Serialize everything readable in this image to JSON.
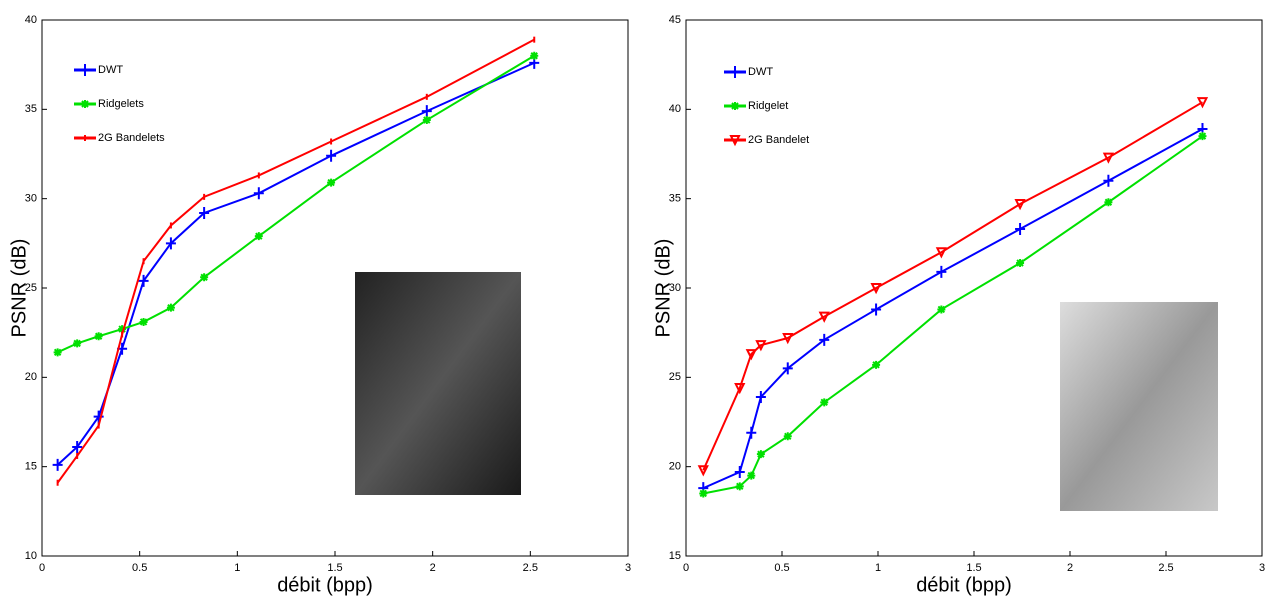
{
  "chart_data": [
    {
      "type": "line",
      "x_label": "débit (bpp)",
      "y_label": "PSNR (dB)",
      "xlim": [
        0,
        3
      ],
      "xticks": [
        0,
        0.5,
        1,
        1.5,
        2,
        2.5,
        3
      ],
      "ylim": [
        10,
        40
      ],
      "yticks": [
        10,
        15,
        20,
        25,
        30,
        35,
        40
      ],
      "x": [
        0.08,
        0.18,
        0.29,
        0.41,
        0.52,
        0.66,
        0.83,
        1.11,
        1.48,
        1.97,
        2.52
      ],
      "series": [
        {
          "name": "DWT",
          "color": "#0000ff",
          "marker": "plus",
          "values": [
            15.1,
            16.1,
            17.8,
            21.6,
            25.4,
            27.5,
            29.2,
            30.3,
            32.4,
            34.9,
            37.6
          ]
        },
        {
          "name": "Ridgelets",
          "color": "#00e000",
          "marker": "star",
          "values": [
            21.4,
            21.9,
            22.3,
            22.7,
            23.1,
            23.9,
            25.6,
            27.9,
            30.9,
            34.4,
            38.0
          ]
        },
        {
          "name": "2G Bandelets",
          "color": "#ff0000",
          "marker": "tick",
          "values": [
            14.1,
            15.6,
            17.3,
            22.4,
            26.5,
            28.5,
            30.1,
            31.3,
            33.2,
            35.7,
            38.9
          ]
        }
      ]
    },
    {
      "type": "line",
      "x_label": "débit (bpp)",
      "y_label": "PSNR (dB)",
      "xlim": [
        0,
        3
      ],
      "xticks": [
        0,
        0.5,
        1,
        1.5,
        2,
        2.5,
        3
      ],
      "ylim": [
        15,
        45
      ],
      "yticks": [
        15,
        20,
        25,
        30,
        35,
        40,
        45
      ],
      "x": [
        0.09,
        0.28,
        0.34,
        0.39,
        0.53,
        0.72,
        0.99,
        1.33,
        1.74,
        2.2,
        2.69
      ],
      "series": [
        {
          "name": "DWT",
          "color": "#0000ff",
          "marker": "plus",
          "values": [
            18.8,
            19.7,
            21.9,
            23.9,
            25.5,
            27.1,
            28.8,
            30.9,
            33.3,
            36.0,
            38.9
          ]
        },
        {
          "name": "Ridgelet",
          "color": "#00e000",
          "marker": "star",
          "values": [
            18.5,
            18.9,
            19.5,
            20.7,
            21.7,
            23.6,
            25.7,
            28.8,
            31.4,
            34.8,
            38.5
          ]
        },
        {
          "name": "2G Bandelet",
          "color": "#ff0000",
          "marker": "triangle",
          "values": [
            19.8,
            24.4,
            26.3,
            26.8,
            27.2,
            28.4,
            30.0,
            32.0,
            34.7,
            37.3,
            40.4
          ]
        }
      ]
    }
  ]
}
